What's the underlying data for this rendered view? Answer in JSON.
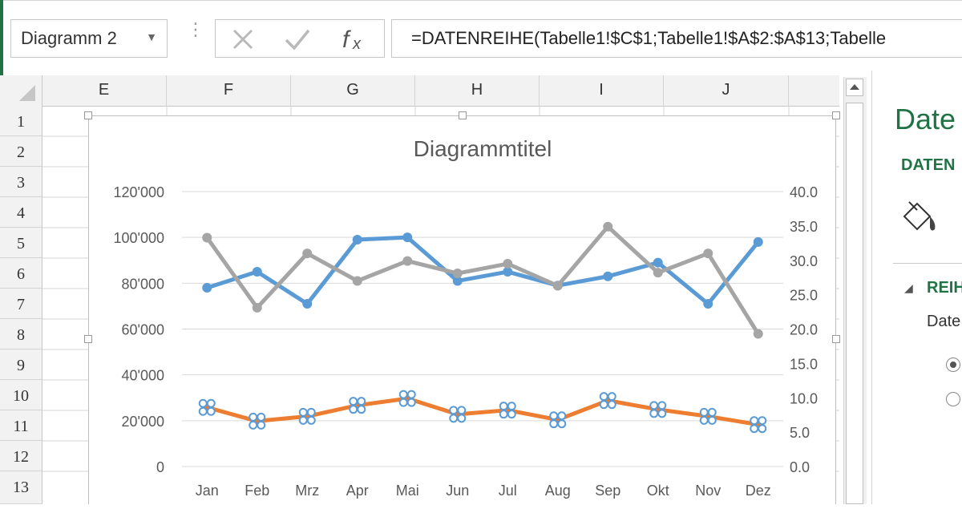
{
  "namebox": {
    "value": "Diagramm 2"
  },
  "formula_bar": {
    "text": "=DATENREIHE(Tabelle1!$C$1;Tabelle1!$A$2:$A$13;Tabelle"
  },
  "columns": [
    "E",
    "F",
    "G",
    "H",
    "I",
    "J"
  ],
  "rows": [
    "1",
    "2",
    "3",
    "4",
    "5",
    "6",
    "7",
    "8",
    "9",
    "10",
    "11",
    "12",
    "13"
  ],
  "colors": {
    "blue": "#5b9bd5",
    "gray": "#a5a5a5",
    "orange": "#ed7d31",
    "green": "#217346",
    "marker_selected": "#5b9bd5"
  },
  "chart_data": {
    "type": "line",
    "title": "Diagrammtitel",
    "categories": [
      "Jan",
      "Feb",
      "Mrz",
      "Apr",
      "Mai",
      "Jun",
      "Jul",
      "Aug",
      "Sep",
      "Okt",
      "Nov",
      "Dez"
    ],
    "y_left": {
      "ylim": [
        0,
        120000
      ],
      "ticks": [
        "0",
        "20'000",
        "40'000",
        "60'000",
        "80'000",
        "100'000",
        "120'000"
      ]
    },
    "y_right": {
      "ylim": [
        0,
        40
      ],
      "ticks": [
        "0.0",
        "5.0",
        "10.0",
        "15.0",
        "20.0",
        "25.0",
        "30.0",
        "35.0",
        "40.0"
      ]
    },
    "grid": true,
    "series": [
      {
        "axis": "left",
        "color": "blue",
        "values": [
          78000,
          85000,
          71000,
          99000,
          100000,
          81000,
          85000,
          79000,
          83000,
          89000,
          71000,
          98000
        ]
      },
      {
        "axis": "right",
        "color": "gray",
        "values": [
          33.3,
          23.1,
          31.0,
          27.0,
          29.9,
          28.1,
          29.5,
          26.3,
          34.9,
          28.2,
          31.0,
          19.3
        ]
      },
      {
        "axis": "right",
        "color": "orange",
        "selected": true,
        "values": [
          8.6,
          6.6,
          7.3,
          8.9,
          9.9,
          7.6,
          8.2,
          6.8,
          9.6,
          8.3,
          7.3,
          6.1
        ]
      }
    ]
  },
  "format_pane": {
    "title": "Date",
    "tab": "DATEN",
    "section": "REIH",
    "label": "Date"
  }
}
